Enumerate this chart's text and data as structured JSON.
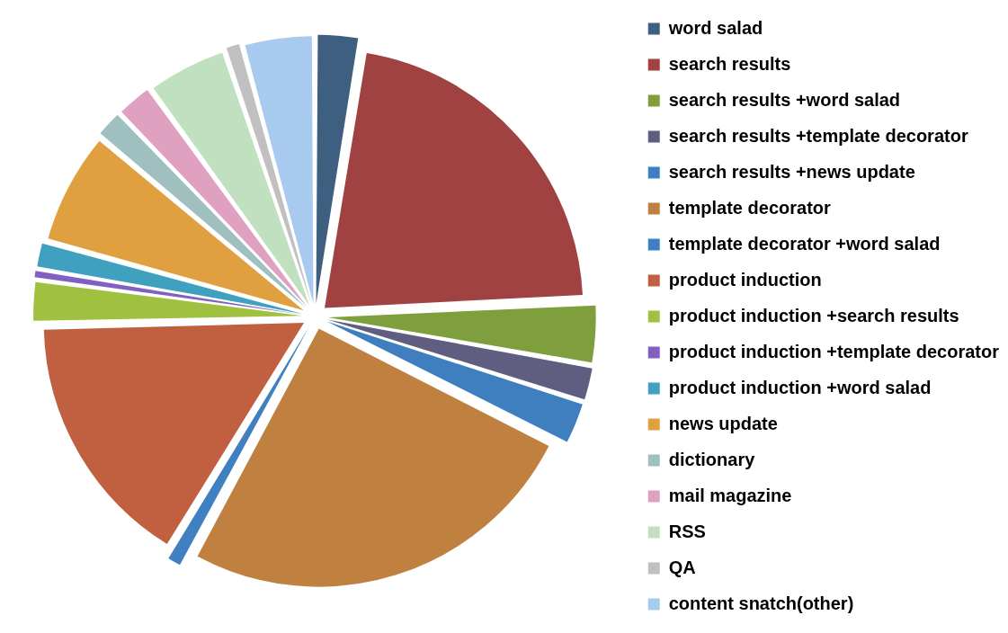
{
  "chart_data": {
    "type": "pie",
    "categories": [
      "word salad",
      "search results",
      "search results +word salad",
      "search results +template decorator",
      "search results +news update",
      "template decorator",
      "template decorator +word salad",
      "product induction",
      "product induction +search results",
      "product induction +template decorator",
      "product induction +word salad",
      "news update",
      "dictionary",
      "mail magazine",
      "RSS",
      "QA",
      "content snatch(other)"
    ],
    "values": [
      2.6,
      21.6,
      3.6,
      2.1,
      2.6,
      25.3,
      1.0,
      15.8,
      2.5,
      0.6,
      1.6,
      6.8,
      1.7,
      2.2,
      4.8,
      1.0,
      4.2
    ],
    "colors": [
      "#3e5f80",
      "#a04142",
      "#7f9f3f",
      "#5f5e80",
      "#3f7fbf",
      "#c08040",
      "#4080c0",
      "#c06040",
      "#a0c040",
      "#8060c0",
      "#40a0c0",
      "#e0a040",
      "#a0c0c0",
      "#e0a0c0",
      "#c0e0c0",
      "#c0c0c0",
      "#a8caee"
    ],
    "legend": "right"
  }
}
